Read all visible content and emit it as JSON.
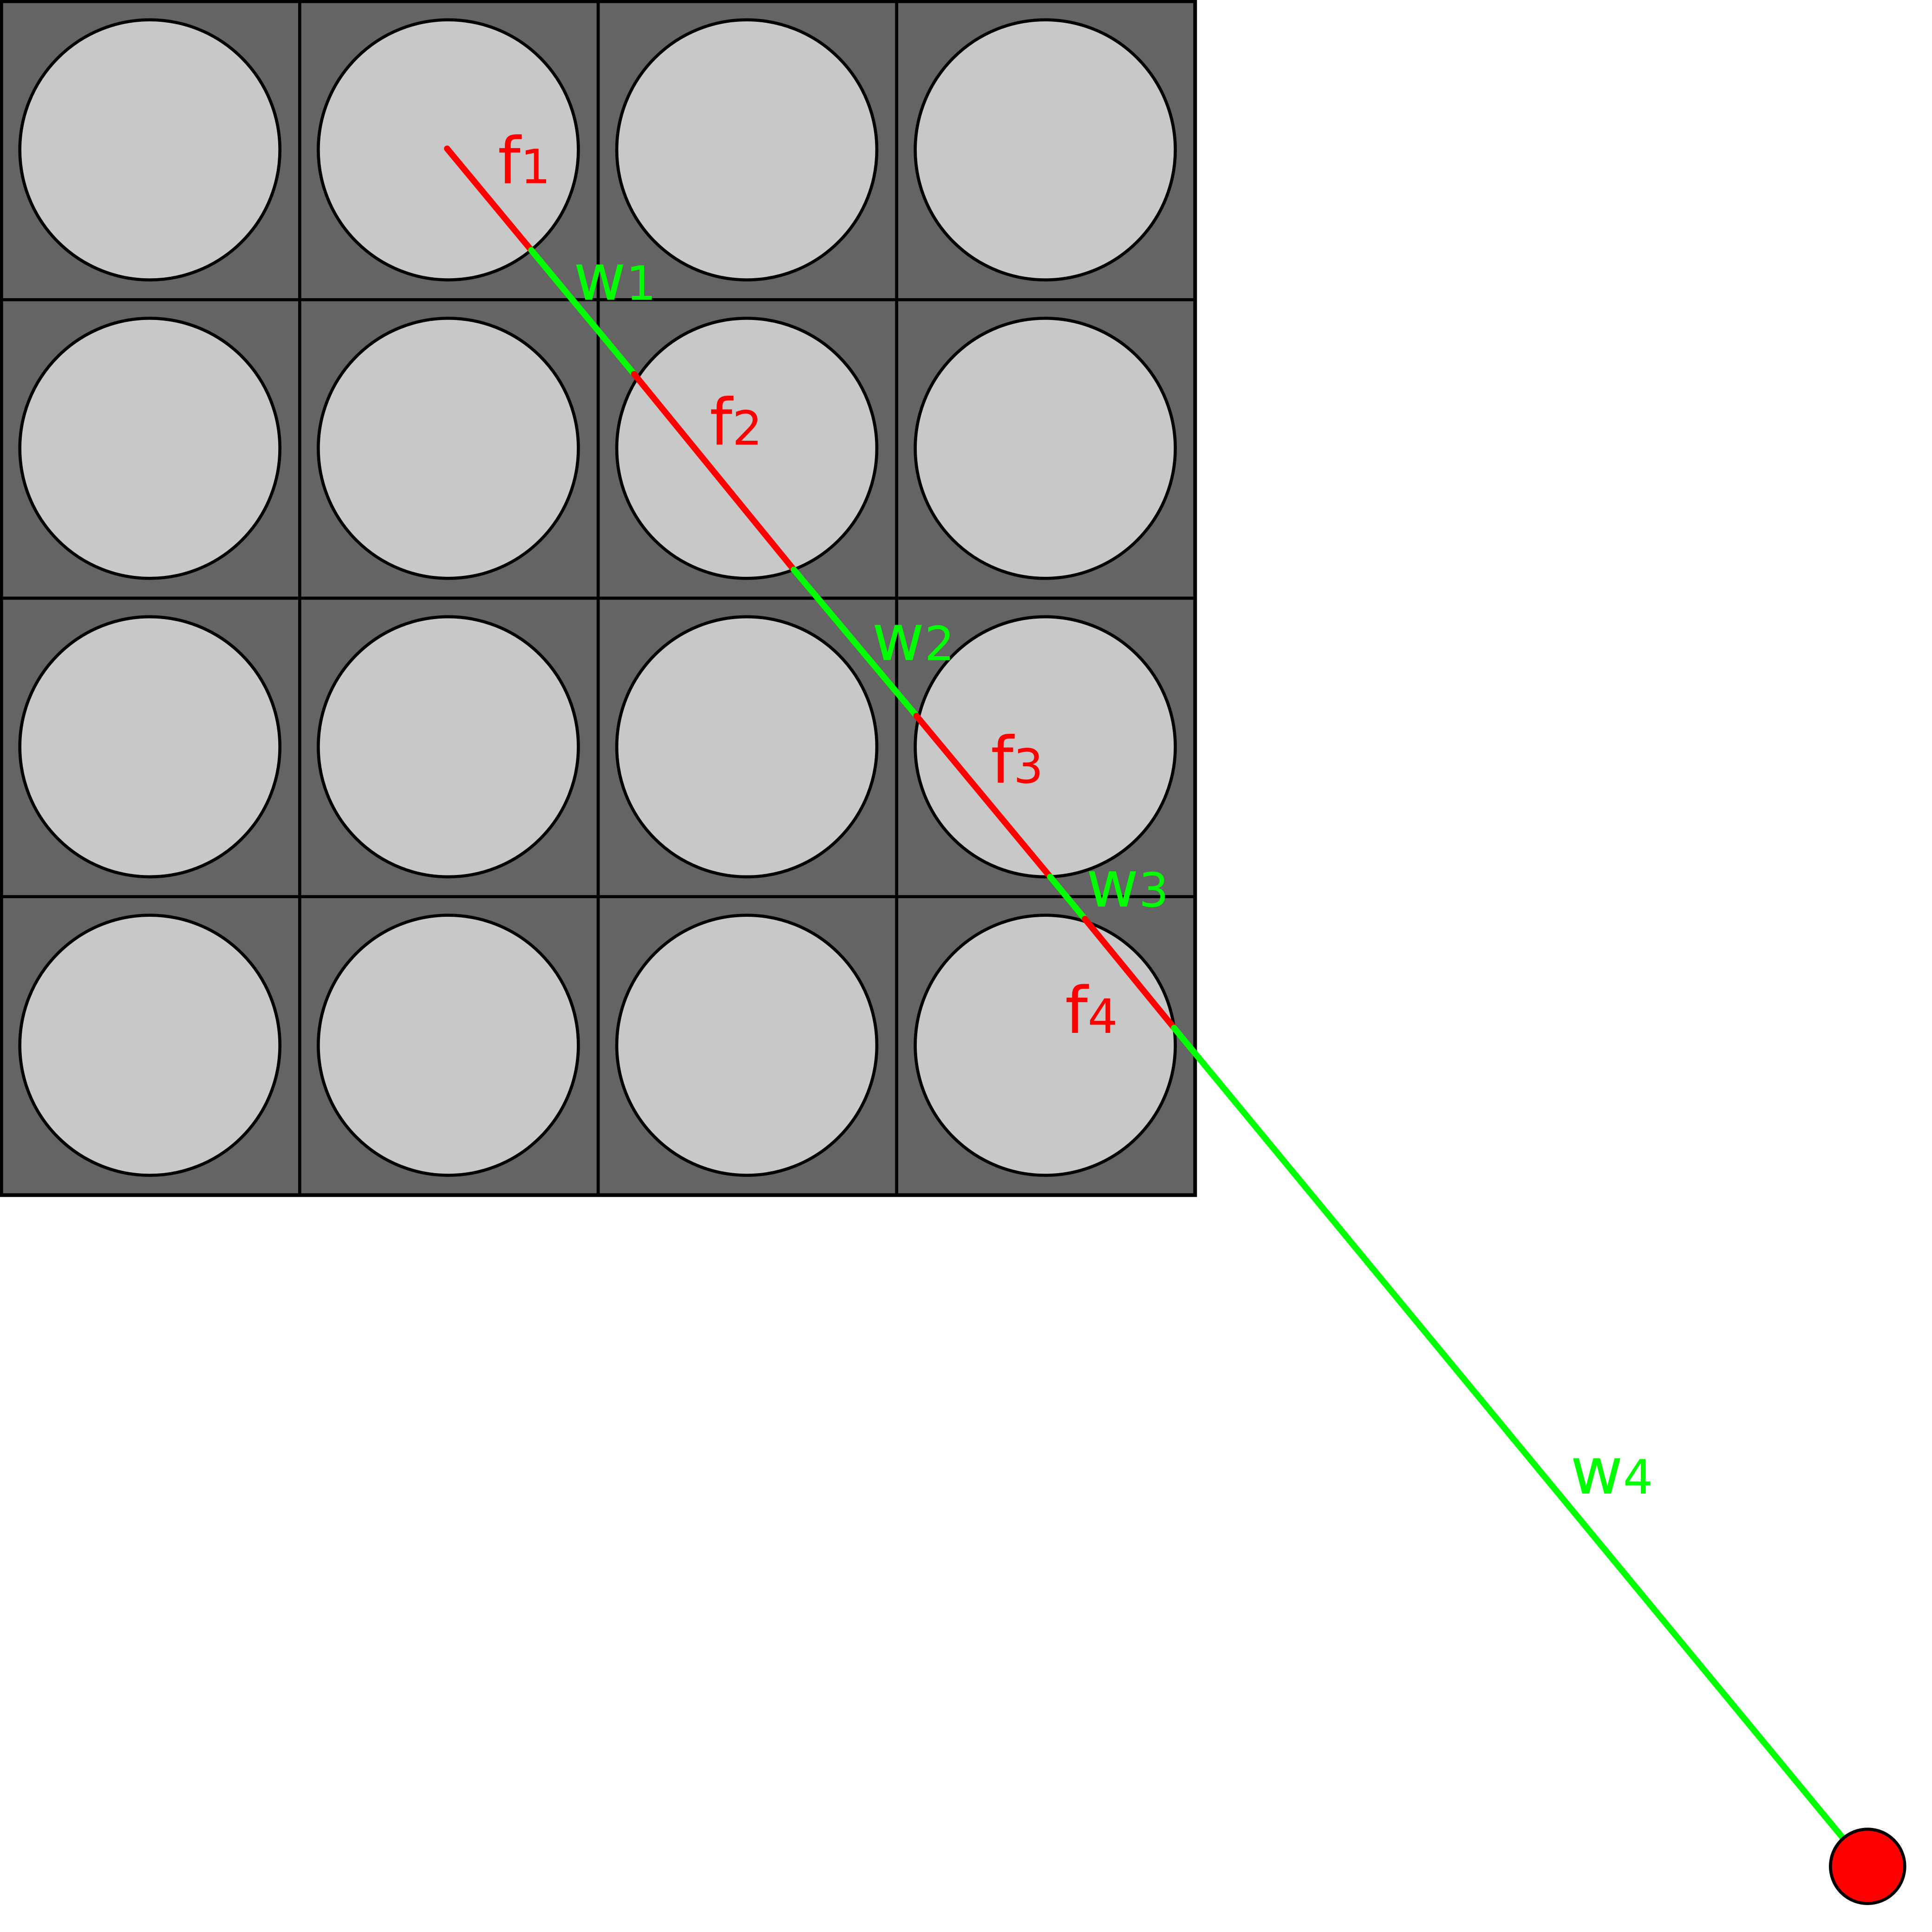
{
  "colors": {
    "assembly_background": "#646464",
    "pin": "#c8c8c8",
    "outline": "#000000",
    "fuel_segment": "#ff0000",
    "water_segment": "#00ff00",
    "detector": "#ff0000"
  },
  "lattice": {
    "rows": 4,
    "columns": 4
  },
  "segments": [
    {
      "type": "fuel",
      "base": "f",
      "subscript": "1"
    },
    {
      "type": "water",
      "base": "w",
      "subscript": "1"
    },
    {
      "type": "fuel",
      "base": "f",
      "subscript": "2"
    },
    {
      "type": "water",
      "base": "w",
      "subscript": "2"
    },
    {
      "type": "fuel",
      "base": "f",
      "subscript": "3"
    },
    {
      "type": "water",
      "base": "w",
      "subscript": "3"
    },
    {
      "type": "fuel",
      "base": "f",
      "subscript": "4"
    },
    {
      "type": "water",
      "base": "w",
      "subscript": "4"
    }
  ]
}
